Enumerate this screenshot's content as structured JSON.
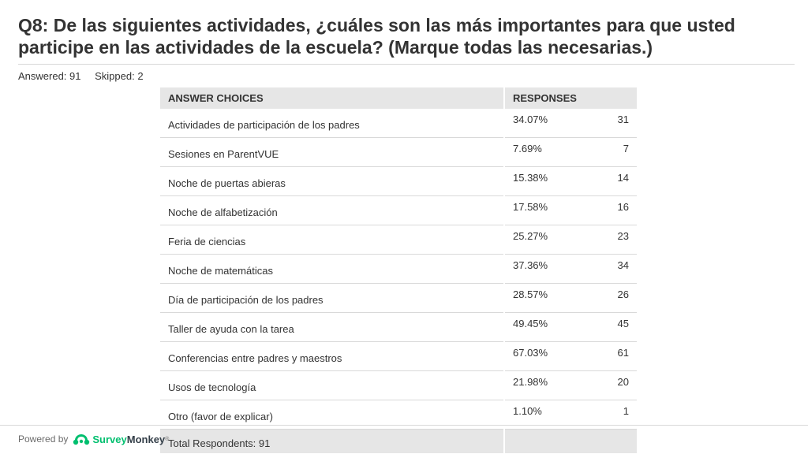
{
  "question": {
    "title": "Q8: De las siguientes actividades, ¿cuáles son las más importantes para que usted participe en las actividades de la escuela? (Marque todas las necesarias.)",
    "answered": "Answered: 91",
    "skipped": "Skipped: 2"
  },
  "table": {
    "headers": [
      "ANSWER CHOICES",
      "RESPONSES"
    ],
    "rows": [
      {
        "choice": "Actividades de participación de los padres",
        "percent": "34.07%",
        "count": "31"
      },
      {
        "choice": "Sesiones en ParentVUE",
        "percent": "7.69%",
        "count": "7"
      },
      {
        "choice": "Noche de puertas abieras",
        "percent": "15.38%",
        "count": "14"
      },
      {
        "choice": "Noche de alfabetización",
        "percent": "17.58%",
        "count": "16"
      },
      {
        "choice": "Feria de ciencias",
        "percent": "25.27%",
        "count": "23"
      },
      {
        "choice": "Noche de matemáticas",
        "percent": "37.36%",
        "count": "34"
      },
      {
        "choice": "Día de participación de los padres",
        "percent": "28.57%",
        "count": "26"
      },
      {
        "choice": "Taller de ayuda con la tarea",
        "percent": "49.45%",
        "count": "45"
      },
      {
        "choice": "Conferencias entre padres y maestros",
        "percent": "67.03%",
        "count": "61"
      },
      {
        "choice": "Usos de tecnología",
        "percent": "21.98%",
        "count": "20"
      },
      {
        "choice": "Otro (favor de explicar)",
        "percent": "1.10%",
        "count": "1"
      }
    ],
    "total": "Total Respondents: 91"
  },
  "footer": {
    "powered_by": "Powered by",
    "brand_part1": "Survey",
    "brand_part2": "Monkey",
    "trademark": "®",
    "logo_icon": "surveymonkey-logo-icon",
    "brand_color": "#00bf6f"
  }
}
